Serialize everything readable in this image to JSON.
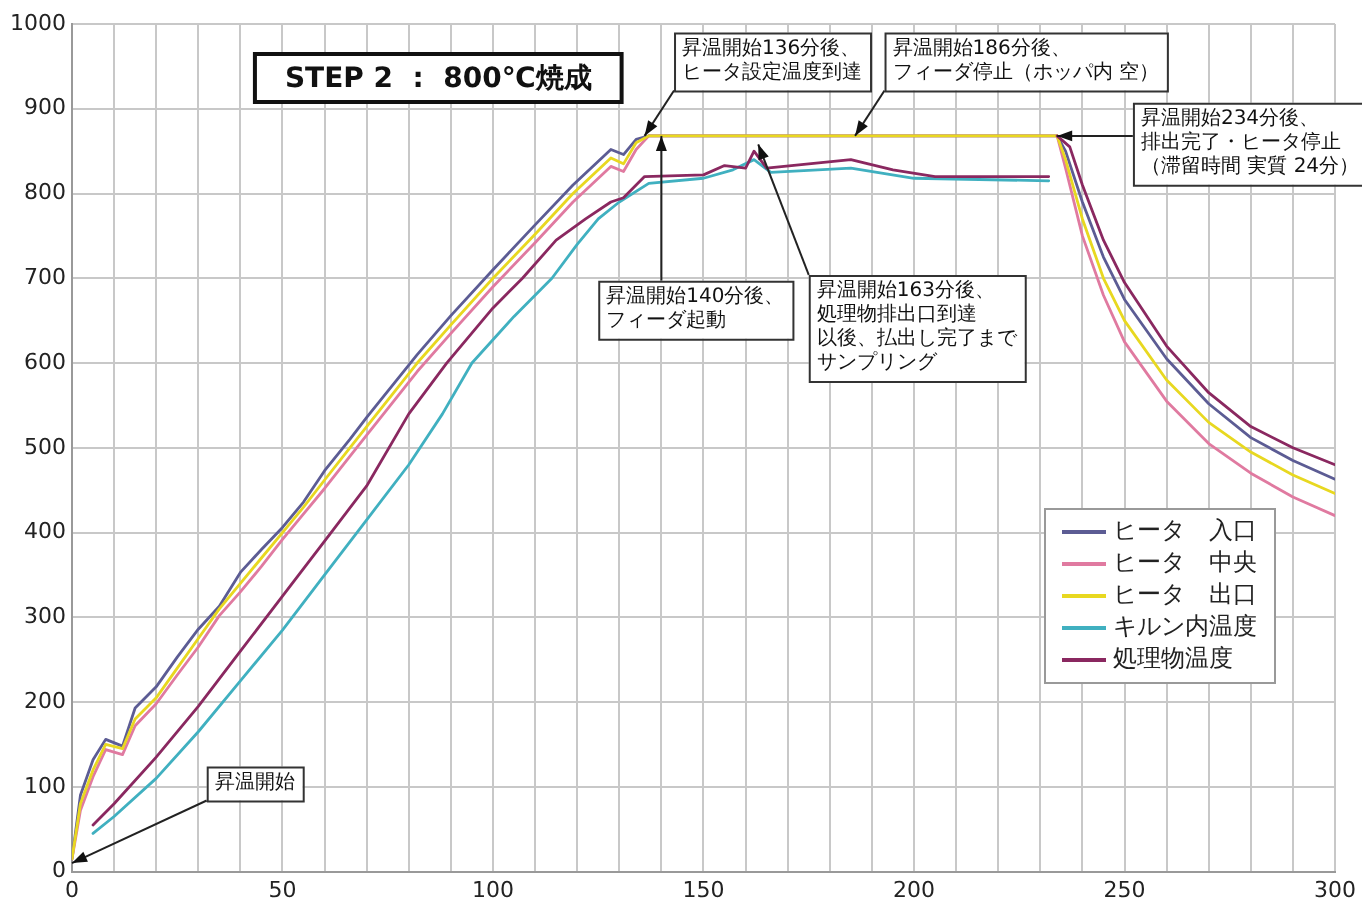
{
  "chart_data": {
    "type": "line",
    "title": "STEP 2  :  800℃焼成",
    "xlim": [
      0,
      300
    ],
    "ylim": [
      0,
      1000
    ],
    "xticks": [
      0,
      {
        "value": 10,
        "label": null
      },
      {
        "value": 20,
        "label": null
      },
      {
        "value": 30,
        "label": null
      },
      {
        "value": 40,
        "label": null
      },
      50,
      {
        "value": 60,
        "label": null
      },
      {
        "value": 70,
        "label": null
      },
      {
        "value": 80,
        "label": null
      },
      {
        "value": 90,
        "label": null
      },
      100,
      {
        "value": 110,
        "label": null
      },
      {
        "value": 120,
        "label": null
      },
      {
        "value": 130,
        "label": null
      },
      {
        "value": 140,
        "label": null
      },
      150,
      {
        "value": 160,
        "label": null
      },
      {
        "value": 170,
        "label": null
      },
      {
        "value": 180,
        "label": null
      },
      {
        "value": 190,
        "label": null
      },
      200,
      {
        "value": 210,
        "label": null
      },
      {
        "value": 220,
        "label": null
      },
      {
        "value": 230,
        "label": null
      },
      {
        "value": 240,
        "label": null
      },
      250,
      {
        "value": 260,
        "label": null
      },
      {
        "value": 270,
        "label": null
      },
      {
        "value": 280,
        "label": null
      },
      {
        "value": 290,
        "label": null
      },
      300
    ],
    "yticks": [
      0,
      100,
      200,
      300,
      400,
      500,
      600,
      700,
      800,
      900,
      1000
    ],
    "grid": true,
    "legend": "right",
    "marker": "none",
    "line_style": "solid",
    "series": [
      {
        "name": "ヒータ　入口",
        "color": "#5c5c94",
        "x": [
          0,
          2,
          5,
          8,
          12,
          15,
          20,
          25,
          30,
          35,
          40,
          45,
          50,
          55,
          60,
          66,
          70,
          82,
          90,
          100,
          110,
          119,
          128,
          131,
          134,
          137,
          234,
          236,
          240,
          245,
          250,
          260,
          270,
          280,
          290,
          300
        ],
        "values": [
          15,
          90,
          132,
          156,
          148,
          193,
          218,
          253,
          286,
          313,
          353,
          380,
          406,
          436,
          473,
          510,
          536,
          610,
          656,
          710,
          763,
          810,
          852,
          846,
          864,
          868,
          868,
          850,
          790,
          725,
          675,
          605,
          552,
          512,
          485,
          463
        ]
      },
      {
        "name": "ヒータ　中央",
        "color": "#e07aa0",
        "x": [
          0,
          2,
          5,
          8,
          12,
          15,
          20,
          25,
          30,
          35,
          40,
          45,
          50,
          55,
          60,
          66,
          70,
          82,
          90,
          100,
          110,
          119,
          128,
          131,
          134,
          137,
          234,
          236,
          240,
          245,
          250,
          260,
          270,
          280,
          290,
          300
        ],
        "values": [
          15,
          72,
          112,
          144,
          138,
          172,
          198,
          232,
          265,
          302,
          330,
          360,
          392,
          422,
          452,
          490,
          515,
          590,
          635,
          690,
          742,
          790,
          832,
          826,
          852,
          868,
          868,
          830,
          750,
          680,
          625,
          555,
          505,
          470,
          442,
          420
        ]
      },
      {
        "name": "ヒータ　出口",
        "color": "#e8d820",
        "x": [
          0,
          2,
          5,
          8,
          12,
          15,
          20,
          25,
          30,
          35,
          40,
          45,
          50,
          55,
          60,
          66,
          70,
          82,
          90,
          100,
          110,
          119,
          128,
          131,
          134,
          137,
          234,
          236,
          240,
          245,
          250,
          260,
          270,
          280,
          290,
          300
        ],
        "values": [
          15,
          80,
          120,
          150,
          145,
          180,
          205,
          240,
          275,
          310,
          340,
          370,
          400,
          430,
          462,
          500,
          525,
          600,
          645,
          700,
          752,
          800,
          842,
          835,
          860,
          868,
          868,
          840,
          770,
          700,
          650,
          580,
          530,
          495,
          468,
          446
        ]
      },
      {
        "name": "キルン内温度",
        "color": "#40b0c0",
        "x": [
          5,
          10,
          20,
          30,
          40,
          50,
          60,
          70,
          80,
          88,
          95,
          105,
          114,
          120,
          125,
          130,
          137,
          150,
          157,
          162,
          166,
          185,
          200,
          232
        ],
        "values": [
          45,
          65,
          110,
          165,
          225,
          285,
          350,
          415,
          480,
          540,
          600,
          655,
          700,
          740,
          770,
          790,
          812,
          818,
          828,
          840,
          825,
          830,
          818,
          815
        ]
      },
      {
        "name": "処理物温度",
        "color": "#8a2860",
        "x": [
          5,
          10,
          20,
          30,
          40,
          50,
          60,
          70,
          80,
          89,
          100,
          107,
          115,
          122,
          128,
          131,
          136,
          150,
          155,
          160,
          162,
          165,
          175,
          185,
          195,
          205,
          232,
          233,
          234,
          237,
          240,
          245,
          250,
          260,
          270,
          280,
          290,
          300
        ],
        "values": [
          55,
          80,
          135,
          195,
          260,
          325,
          390,
          455,
          540,
          600,
          665,
          700,
          745,
          770,
          790,
          795,
          820,
          822,
          833,
          830,
          850,
          830,
          835,
          840,
          828,
          820,
          820,
          null,
          868,
          855,
          810,
          745,
          695,
          620,
          565,
          525,
          500,
          480
        ]
      }
    ],
    "annotations": [
      {
        "text": "昇温開始",
        "x": 0,
        "y": 10
      },
      {
        "text": "昇温開始136分後、ヒータ設定温度到達",
        "x": 136,
        "y": 868
      },
      {
        "text": "昇温開始140分後、フィーダ起動",
        "x": 140,
        "y": 868
      },
      {
        "text": "昇温開始186分後、フィーダ停止（ホッパ内 空）",
        "x": 186,
        "y": 868
      },
      {
        "text": "昇温開始163分後、処理物排出口到達以後、払出し完了までサンプリング",
        "x": 163,
        "y": 858
      },
      {
        "text": "昇温開始234分後、排出完了・ヒータ停止（滞留時間 実質 24分）",
        "x": 234,
        "y": 868
      }
    ]
  }
}
